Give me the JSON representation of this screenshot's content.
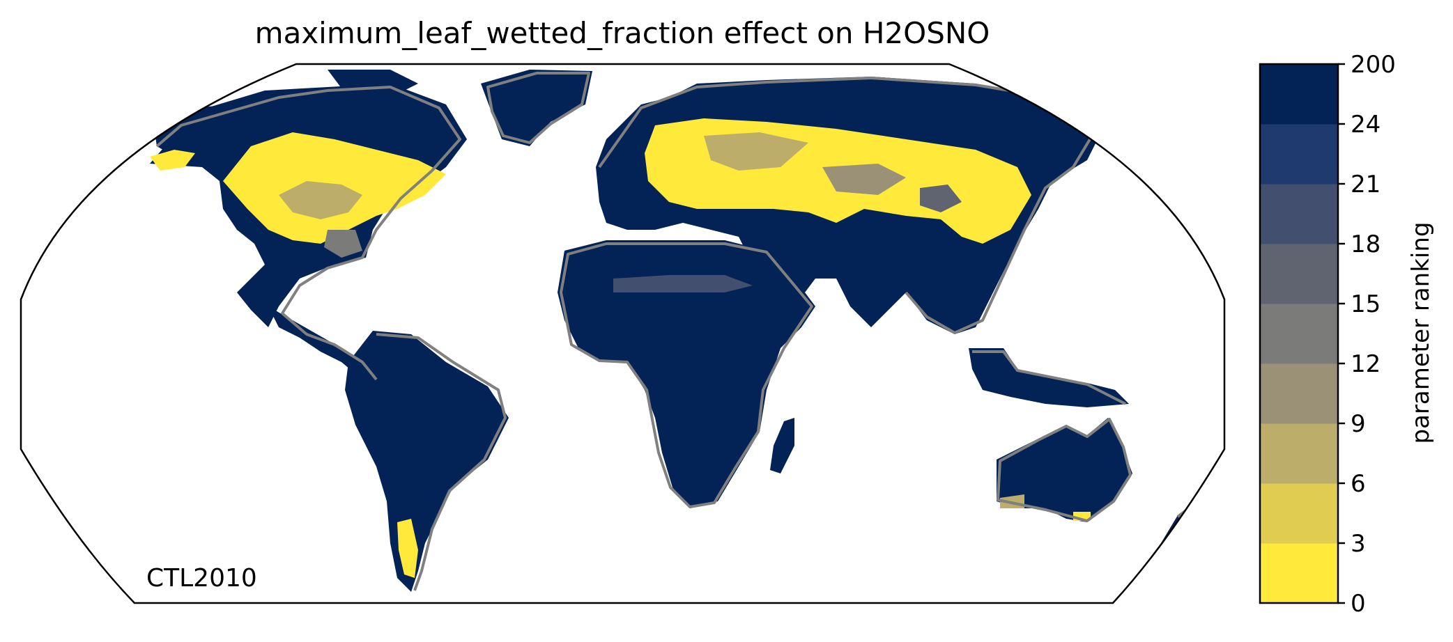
{
  "title": "maximum_leaf_wetted_fraction effect on H2OSNO",
  "run_label": "CTL2010",
  "colorbar": {
    "label": "parameter ranking",
    "ticks": [
      "0",
      "3",
      "6",
      "9",
      "12",
      "15",
      "18",
      "21",
      "24",
      "200"
    ],
    "colors": [
      "#ffe93b",
      "#e1cc52",
      "#bcae6a",
      "#9a9177",
      "#7b7b79",
      "#5f6470",
      "#434f6f",
      "#1f3a6f",
      "#032356"
    ]
  },
  "map": {
    "projection": "robinson",
    "ocean_color": "#ffffff",
    "land_default_color": "#032356",
    "coastline_color": "#808080"
  }
}
